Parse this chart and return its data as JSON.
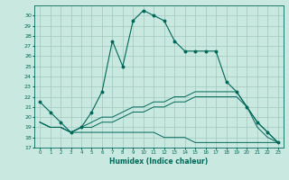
{
  "title": "",
  "xlabel": "Humidex (Indice chaleur)",
  "background_color": "#c8e8e0",
  "grid_color": "#a0c8c0",
  "line_color": "#006858",
  "xlim": [
    -0.5,
    23.5
  ],
  "ylim": [
    17,
    31
  ],
  "yticks": [
    17,
    18,
    19,
    20,
    21,
    22,
    23,
    24,
    25,
    26,
    27,
    28,
    29,
    30
  ],
  "xticks": [
    0,
    1,
    2,
    3,
    4,
    5,
    6,
    7,
    8,
    9,
    10,
    11,
    12,
    13,
    14,
    15,
    16,
    17,
    18,
    19,
    20,
    21,
    22,
    23
  ],
  "line1": {
    "x": [
      0,
      1,
      2,
      3,
      4,
      5,
      6,
      7,
      8,
      9,
      10,
      11,
      12,
      13,
      14,
      15,
      16,
      17,
      18,
      19,
      20,
      21,
      22,
      23
    ],
    "y": [
      21.5,
      20.5,
      19.5,
      18.5,
      19.0,
      20.5,
      22.5,
      27.5,
      25.0,
      29.5,
      30.5,
      30.0,
      29.5,
      27.5,
      26.5,
      26.5,
      26.5,
      26.5,
      23.5,
      22.5,
      21.0,
      19.5,
      18.5,
      17.5
    ]
  },
  "line2": {
    "x": [
      0,
      1,
      2,
      3,
      4,
      5,
      6,
      7,
      8,
      9,
      10,
      11,
      12,
      13,
      14,
      15,
      16,
      17,
      18,
      19,
      20,
      21,
      22,
      23
    ],
    "y": [
      19.5,
      19.0,
      19.0,
      18.5,
      19.0,
      19.5,
      20.0,
      20.0,
      20.5,
      21.0,
      21.0,
      21.5,
      21.5,
      22.0,
      22.0,
      22.5,
      22.5,
      22.5,
      22.5,
      22.5,
      21.0,
      19.5,
      18.5,
      17.5
    ]
  },
  "line3": {
    "x": [
      0,
      1,
      2,
      3,
      4,
      5,
      6,
      7,
      8,
      9,
      10,
      11,
      12,
      13,
      14,
      15,
      16,
      17,
      18,
      19,
      20,
      21,
      22,
      23
    ],
    "y": [
      19.5,
      19.0,
      19.0,
      18.5,
      19.0,
      19.0,
      19.5,
      19.5,
      20.0,
      20.5,
      20.5,
      21.0,
      21.0,
      21.5,
      21.5,
      22.0,
      22.0,
      22.0,
      22.0,
      22.0,
      21.0,
      19.0,
      18.0,
      17.5
    ]
  },
  "line4": {
    "x": [
      0,
      1,
      2,
      3,
      4,
      5,
      6,
      7,
      8,
      9,
      10,
      11,
      12,
      13,
      14,
      15,
      16,
      17,
      18,
      19,
      20,
      21,
      22,
      23
    ],
    "y": [
      19.5,
      19.0,
      19.0,
      18.5,
      18.5,
      18.5,
      18.5,
      18.5,
      18.5,
      18.5,
      18.5,
      18.5,
      18.0,
      18.0,
      18.0,
      17.5,
      17.5,
      17.5,
      17.5,
      17.5,
      17.5,
      17.5,
      17.5,
      17.5
    ]
  }
}
